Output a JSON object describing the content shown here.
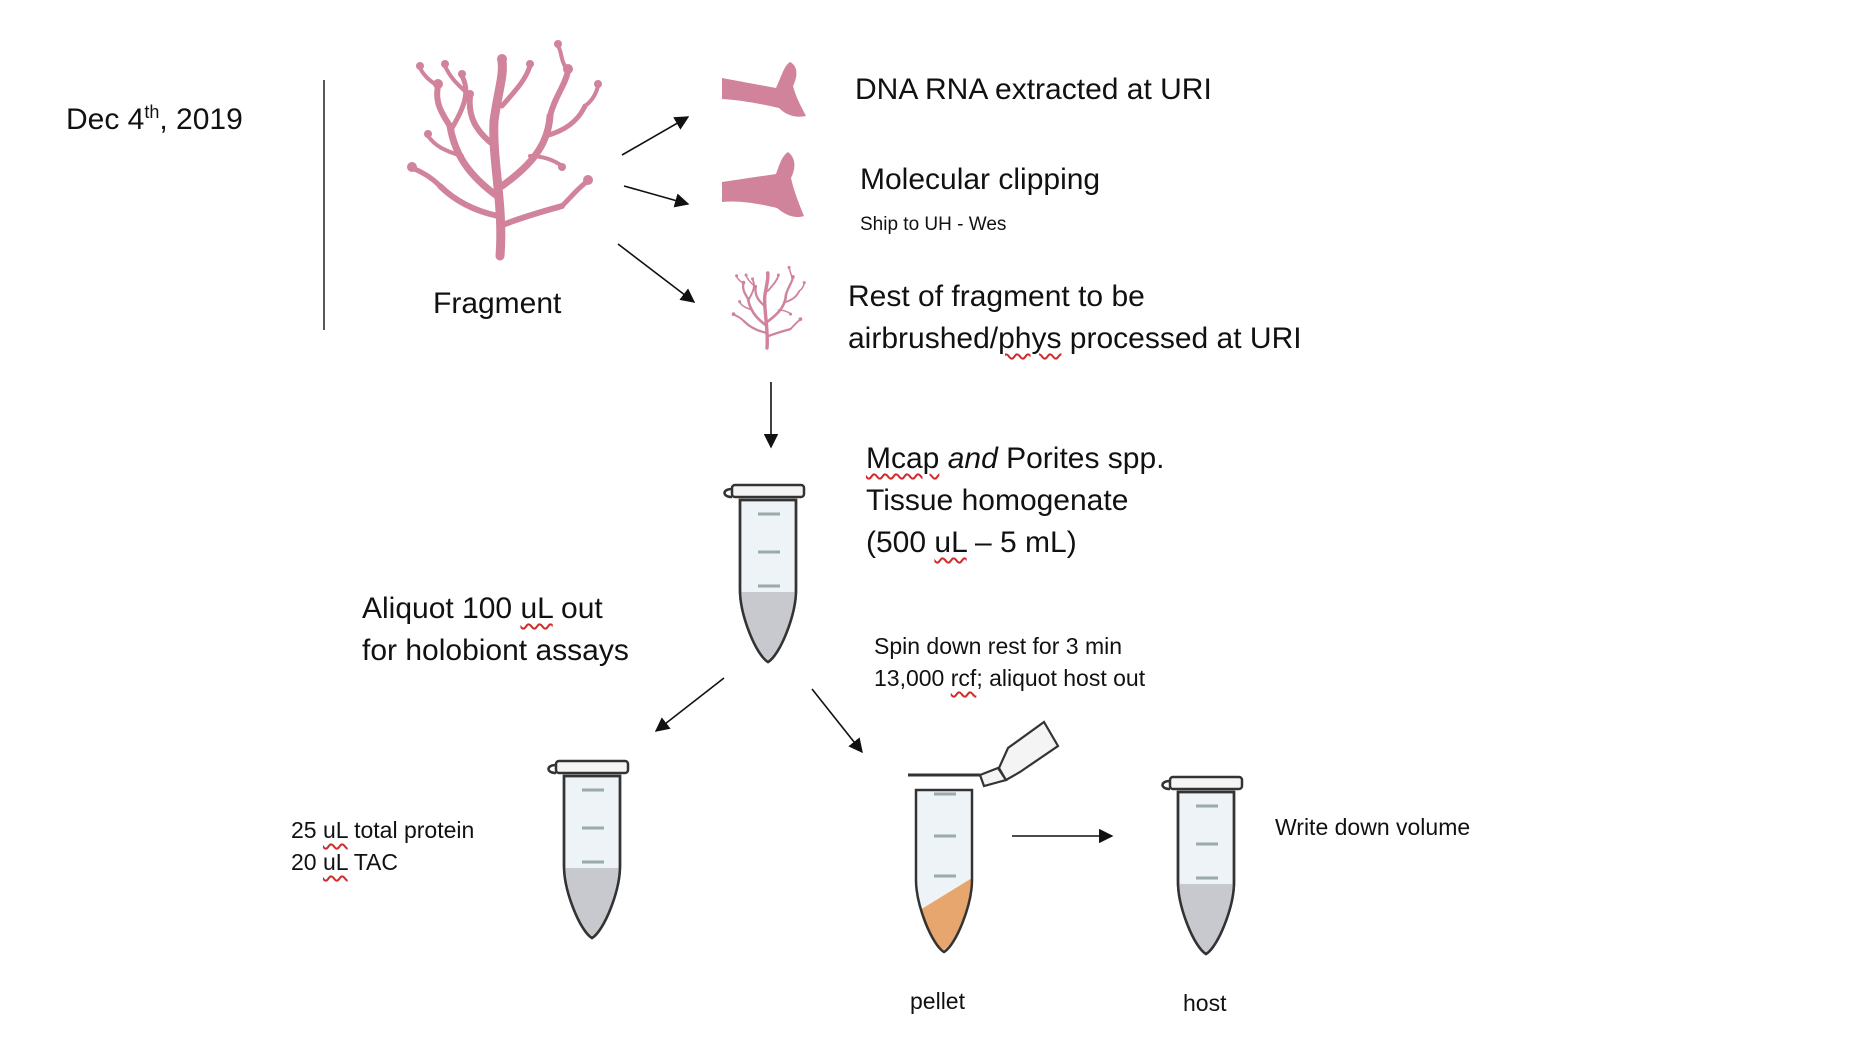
{
  "date": {
    "prefix": "Dec 4",
    "superscript": "th",
    "suffix": ", 2019"
  },
  "fragment_label": "Fragment",
  "branch1": {
    "text": "DNA RNA extracted at URI"
  },
  "branch2": {
    "text": "Molecular clipping",
    "subtext": "Ship to UH - Wes"
  },
  "branch3": {
    "line1": "Rest of fragment to be",
    "line2_pre": "airbrushed/",
    "line2_squig": "phys",
    "line2_post": " processed at URI"
  },
  "homogenate": {
    "line1_squig": "Mcap",
    "line1_italic": "and",
    "line1_post": " Porites spp.",
    "line2": "Tissue homogenate",
    "line3_pre": "(500 ",
    "line3_squig": "uL",
    "line3_post": " – 5 mL)"
  },
  "aliquot": {
    "line1_pre": "Aliquot 100 ",
    "line1_squig": "uL",
    "line1_post": " out",
    "line2": "for holobiont assays"
  },
  "spin": {
    "line1": "Spin down rest for 3 min",
    "line2_pre": "13,000 ",
    "line2_squig": "rcf",
    "line2_post": "; aliquot host out"
  },
  "assays": {
    "line1_pre": "25 ",
    "line1_squig": "uL",
    "line1_post": " total protein",
    "line2_pre": "20 ",
    "line2_squig": "uL",
    "line2_post": " TAC"
  },
  "pellet_label": "pellet",
  "host_label": "host",
  "write_volume": "Write down volume",
  "colors": {
    "coral": "#d0839b",
    "pellet": "#e8a66f",
    "tube_liquid": "#c8c9ce",
    "tube_body": "#eef3f7"
  },
  "icons": [
    "coral-fragment-icon",
    "coral-clip-icon",
    "microcentrifuge-tube-icon",
    "arrow-icon"
  ]
}
